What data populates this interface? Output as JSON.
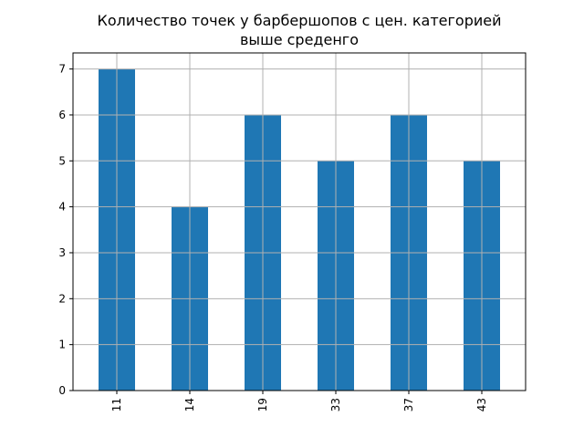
{
  "chart_data": {
    "type": "bar",
    "title_lines": [
      "Количество точек у барбершопов с цен. категорией",
      "выше средeнго"
    ],
    "categories": [
      "11",
      "14",
      "19",
      "33",
      "37",
      "43"
    ],
    "values": [
      7,
      4,
      6,
      5,
      6,
      5
    ],
    "xlabel": "",
    "ylabel": "",
    "ylim": [
      0,
      7.35
    ],
    "yticks": [
      "0",
      "1",
      "2",
      "3",
      "4",
      "5",
      "6",
      "7"
    ],
    "grid": true,
    "legend": "none",
    "x_tick_rotation": "vertical",
    "bar_color": "#1f77b4",
    "grid_color": "#b0b0b0"
  }
}
